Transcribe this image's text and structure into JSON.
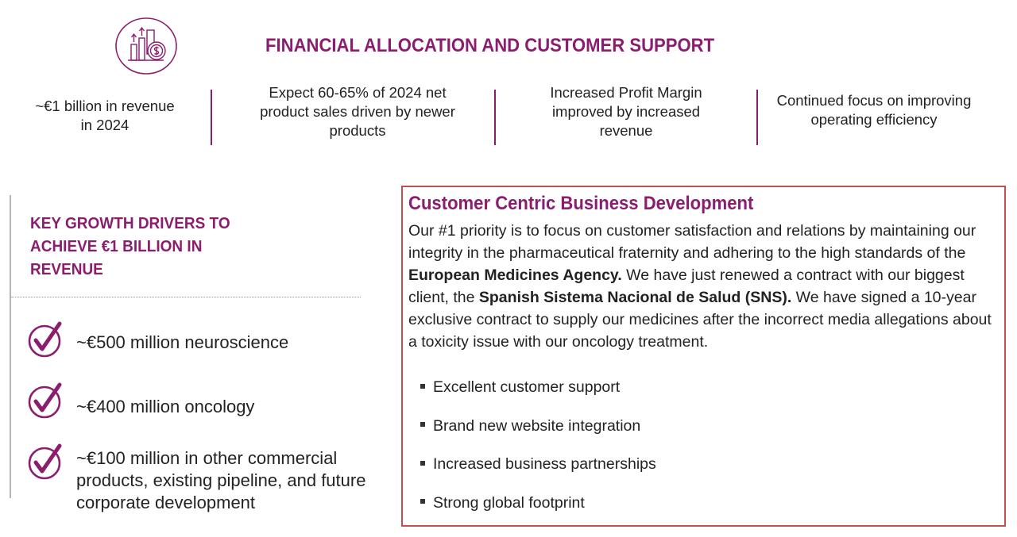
{
  "header": {
    "icon": "finance-chart-coin-icon",
    "title": "FINANCIAL ALLOCATION AND CUSTOMER SUPPORT"
  },
  "stats": [
    {
      "text": "~€1 billion in revenue in 2024"
    },
    {
      "text": "Expect 60-65% of 2024 net product sales driven by newer products"
    },
    {
      "text": "Increased Profit Margin improved by increased revenue"
    },
    {
      "text": "Continued focus on improving operating efficiency"
    }
  ],
  "growth": {
    "title": "KEY GROWTH DRIVERS TO ACHIEVE €1 BILLION IN REVENUE",
    "icon": "checkmark-circle-icon",
    "drivers": [
      {
        "text": "~€500 million neuroscience"
      },
      {
        "text": "~€400 million oncology"
      },
      {
        "text": "~€100 million in other commercial products, existing pipeline, and future corporate development"
      }
    ]
  },
  "business": {
    "title": "Customer Centric Business Development",
    "para_1": "Our #1 priority is to focus on customer satisfaction and relations by maintaining our integrity in the pharmaceutical fraternity and adhering to the high standards of the ",
    "agency": "European Medicines Agency.",
    "para_2": " We have just renewed a contract with our biggest client, the ",
    "client": "Spanish Sistema Nacional de Salud (SNS).",
    "para_3": " We have signed a 10-year exclusive contract to supply our medicines after the incorrect media allegations about a toxicity issue with our oncology treatment.",
    "bullets": [
      "Excellent customer support",
      "Brand new website integration",
      "Increased business partnerships",
      "Strong global footprint"
    ]
  },
  "colors": {
    "accent": "#8b1d6f",
    "box_border": "#c0504d",
    "text": "#222222"
  }
}
